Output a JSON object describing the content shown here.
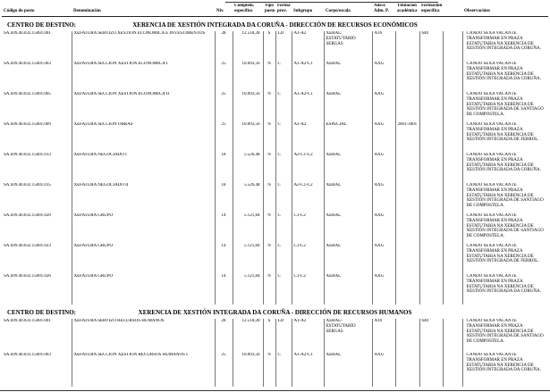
{
  "table_header": {
    "columns": [
      {
        "id": "codigo",
        "line1": "",
        "line2": "Código do posto"
      },
      {
        "id": "denominacion",
        "line1": "",
        "line2": "Denominación"
      },
      {
        "id": "niv",
        "line1": "",
        "line2": "Niv."
      },
      {
        "id": "complem",
        "line1": "Complem.",
        "line2": "específico"
      },
      {
        "id": "tipo",
        "line1": "Tipo",
        "line2": "posto"
      },
      {
        "id": "forma",
        "line1": "Forma",
        "line2": "prov."
      },
      {
        "id": "subgrupo",
        "line1": "",
        "line2": "Subgrupo"
      },
      {
        "id": "corpo",
        "line1": "",
        "line2": "Corpo/escala"
      },
      {
        "id": "adscr",
        "line1": "Adscr.",
        "line2": "Adm. P."
      },
      {
        "id": "titulacion",
        "line1": "Titulación",
        "line2": "académica"
      },
      {
        "id": "formacion",
        "line1": "Formación",
        "line2": "específica"
      },
      {
        "id": "observacions",
        "line1": "",
        "line2": "Observacións"
      }
    ]
  },
  "sections": [
    {
      "label": "CENTRO DE DESTINO:",
      "title": "XERENCIA DE XESTIÓN INTEGRADA DA CORUÑA - DIRECCIÓN DE RECURSOS ECONÓMICOS",
      "rows": [
        {
          "codigo": "SA.S99.40.032.15001.001",
          "denominacion": "XEFATURA SERVIZO XESTIÓN ECONÓMICA E INVESTIMENTOS",
          "niv": "28",
          "complem": "12.518,28",
          "tipo": "S",
          "forma": "LD",
          "subgrupo": "A1-A2",
          "corpo": "XERAL/ ESTATUTARIO SERGAS",
          "adscr": "A16",
          "titulacion": "",
          "formacion": "640",
          "observacions": "CANDO SEXA VACANTE TRANSFORMAR EN PRAZA ESTATUTARIA NA XERENCIA DE XESTIÓN INTEGRADA DA CORUÑA."
        },
        {
          "codigo": "SA.S99.40.032.15001.003",
          "denominacion": "XEFATURA SECCIÓN XESTIÓN ECONÓMICA I",
          "niv": "25",
          "complem": "10.093,56",
          "tipo": "N",
          "forma": "C",
          "subgrupo": "A1-A2-C1",
          "corpo": "XERAL",
          "adscr": "AXG",
          "titulacion": "",
          "formacion": "",
          "observacions": "CANDO SEXA VACANTE TRANSFORMAR EN PRAZA ESTATUTARIA NA XERENCIA DE XESTIÓN INTEGRADA DA CORUÑA."
        },
        {
          "codigo": "SA.S99.40.032.15001.005",
          "denominacion": "XEFATURA SECCIÓN XESTIÓN ECONÓMICA II",
          "niv": "25",
          "complem": "10.093,56",
          "tipo": "N",
          "forma": "C",
          "subgrupo": "A1-A2-C1",
          "corpo": "XERAL",
          "adscr": "AXG",
          "titulacion": "",
          "formacion": "",
          "observacions": "CANDO SEXA VACANTE TRANSFORMAR EN PRAZA ESTATUTARIA NA XERENCIA DE XESTIÓN INTEGRADA DE SANTIAGO DE COMPOSTELA."
        },
        {
          "codigo": "SA.S99.40.032.15001.009",
          "denominacion": "XEFATURA SECCIÓN OBRAS",
          "niv": "25",
          "complem": "10.093,56",
          "tipo": "N",
          "forma": "C",
          "subgrupo": "A1-A2",
          "corpo": "ESPECIAL",
          "adscr": "AXG",
          "titulacion": "2001-3001",
          "formacion": "",
          "observacions": "CANDO SEXA VACANTE TRANSFORMAR EN PRAZA ESTATUTARIA NA XERENCIA DE XESTIÓN INTEGRADA DE FERROL."
        },
        {
          "codigo": "SA.S99.40.032.15001.013",
          "denominacion": "XEFATURA NEGOCIADO I",
          "niv": "18",
          "complem": "5.526,48",
          "tipo": "N",
          "forma": "C",
          "subgrupo": "A2-C1-C2",
          "corpo": "XERAL",
          "adscr": "AXG",
          "titulacion": "",
          "formacion": "",
          "observacions": "CANDO SEXA VACANTE TRANSFORMAR EN PRAZA ESTATUTARIA NA XERENCIA DE XESTIÓN INTEGRADA DA CORUÑA."
        },
        {
          "codigo": "SA.S99.40.032.15001.015",
          "denominacion": "XEFATURA NEGOCIADO II",
          "niv": "18",
          "complem": "5.526,48",
          "tipo": "N",
          "forma": "C",
          "subgrupo": "A2-C1-C2",
          "corpo": "XERAL",
          "adscr": "AXG",
          "titulacion": "",
          "formacion": "",
          "observacions": "CANDO SEXA VACANTE TRANSFORMAR EN PRAZA ESTATUTARIA NA XERENCIA DE XESTIÓN INTEGRADA DE SANTIAGO DE COMPOSTELA."
        },
        {
          "codigo": "SA.S99.40.032.15001.020",
          "denominacion": "XEFATURA GRUPO",
          "niv": "14",
          "complem": "5.121,84",
          "tipo": "N",
          "forma": "C",
          "subgrupo": "C1-C2",
          "corpo": "XERAL",
          "adscr": "AXG",
          "titulacion": "",
          "formacion": "",
          "observacions": "CANDO SEXA VACANTE TRANSFORMAR EN PRAZA ESTATUTARIA NA XERENCIA DE XESTIÓN INTEGRADA DE SANTIAGO DE COMPOSTELA."
        },
        {
          "codigo": "SA.S99.40.032.15001.023",
          "denominacion": "XEFATURA GRUPO",
          "niv": "14",
          "complem": "5.121,84",
          "tipo": "N",
          "forma": "C",
          "subgrupo": "C1-C2",
          "corpo": "XERAL",
          "adscr": "AXG",
          "titulacion": "",
          "formacion": "",
          "observacions": "CANDO SEXA VACANTE TRANSFORMAR EN PRAZA ESTATUTARIA NA XERENCIA DE XESTIÓN INTEGRADA DE FERROL."
        },
        {
          "codigo": "SA.S99.40.032.15001.026",
          "denominacion": "XEFATURA GRUPO",
          "niv": "14",
          "complem": "5.121,84",
          "tipo": "N",
          "forma": "C",
          "subgrupo": "C1-C2",
          "corpo": "XERAL",
          "adscr": "AXG",
          "titulacion": "",
          "formacion": "",
          "observacions": "CANDO SEXA VACANTE TRANSFORMAR EN PRAZA ESTATUTARIA NA XERENCIA DE XESTIÓN INTEGRADA DA CORUÑA."
        }
      ]
    },
    {
      "label": "CENTRO DE DESTINO:",
      "title": "XERENCIA DE XESTIÓN INTEGRADA DA CORUÑA - DIRECCIÓN DE RECURSOS HUMANOS",
      "rows": [
        {
          "codigo": "SA.S99.40.033.15001.001",
          "denominacion": "XEFATURA SERVIZO RECURSOS HUMANOS",
          "niv": "28",
          "complem": "12.518,28",
          "tipo": "S",
          "forma": "LD",
          "subgrupo": "A1-A2",
          "corpo": "XERAL/ ESTATUTARIO SERGAS",
          "adscr": "A16",
          "titulacion": "",
          "formacion": "640",
          "observacions": "CANDO SEXA VACANTE TRANSFORMAR EN PRAZA ESTATUTARIA NA XERENCIA DE XESTIÓN INTEGRADA DE SANTIAGO DE COMPOSTELA."
        },
        {
          "codigo": "SA.S99.40.033.15001.003",
          "denominacion": "XEFATURA SECCIÓN XESTIÓN RECURSOS HUMANOS I",
          "niv": "25",
          "complem": "10.093,56",
          "tipo": "N",
          "forma": "C",
          "subgrupo": "A1-A2-C1",
          "corpo": "XERAL",
          "adscr": "AXG",
          "titulacion": "",
          "formacion": "",
          "observacions": "CANDO SEXA VACANTE TRANSFORMAR EN PRAZA ESTATUTARIA NA XERENCIA DE XESTIÓN INTEGRADA DA CORUÑA."
        }
      ]
    }
  ]
}
